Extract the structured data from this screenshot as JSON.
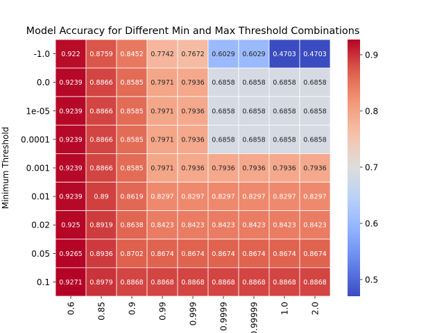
{
  "chart_data": {
    "type": "heatmap",
    "title": "Model Accuracy for Different Min and Max Threshold Combinations",
    "ylabel": "Minimum Threshold",
    "xlabel": "",
    "x_categories": [
      "0.6",
      "0.85",
      "0.9",
      "0.99",
      "0.999",
      "0.9999",
      "0.99999",
      "1.0",
      "2.0"
    ],
    "y_categories": [
      "-1.0",
      "0.0",
      "1e-05",
      "0.0001",
      "0.001",
      "0.01",
      "0.02",
      "0.05",
      "0.1"
    ],
    "values": [
      [
        0.922,
        0.8759,
        0.8452,
        0.7742,
        0.7672,
        0.6029,
        0.6029,
        0.4703,
        0.4703
      ],
      [
        0.9239,
        0.8866,
        0.8585,
        0.7971,
        0.7936,
        0.6858,
        0.6858,
        0.6858,
        0.6858
      ],
      [
        0.9239,
        0.8866,
        0.8585,
        0.7971,
        0.7936,
        0.6858,
        0.6858,
        0.6858,
        0.6858
      ],
      [
        0.9239,
        0.8866,
        0.8585,
        0.7971,
        0.7936,
        0.6858,
        0.6858,
        0.6858,
        0.6858
      ],
      [
        0.9239,
        0.8866,
        0.8585,
        0.7971,
        0.7936,
        0.7936,
        0.7936,
        0.7936,
        0.7936
      ],
      [
        0.9239,
        0.89,
        0.8619,
        0.8297,
        0.8297,
        0.8297,
        0.8297,
        0.8297,
        0.8297
      ],
      [
        0.925,
        0.8919,
        0.8638,
        0.8423,
        0.8423,
        0.8423,
        0.8423,
        0.8423,
        0.8423
      ],
      [
        0.9265,
        0.8936,
        0.8702,
        0.8674,
        0.8674,
        0.8674,
        0.8674,
        0.8674,
        0.8674
      ],
      [
        0.9271,
        0.8979,
        0.8868,
        0.8868,
        0.8868,
        0.8868,
        0.8868,
        0.8868,
        0.8868
      ]
    ],
    "value_labels": [
      [
        "0.922",
        "0.8759",
        "0.8452",
        "0.7742",
        "0.7672",
        "0.6029",
        "0.6029",
        "0.4703",
        "0.4703"
      ],
      [
        "0.9239",
        "0.8866",
        "0.8585",
        "0.7971",
        "0.7936",
        "0.6858",
        "0.6858",
        "0.6858",
        "0.6858"
      ],
      [
        "0.9239",
        "0.8866",
        "0.8585",
        "0.7971",
        "0.7936",
        "0.6858",
        "0.6858",
        "0.6858",
        "0.6858"
      ],
      [
        "0.9239",
        "0.8866",
        "0.8585",
        "0.7971",
        "0.7936",
        "0.6858",
        "0.6858",
        "0.6858",
        "0.6858"
      ],
      [
        "0.9239",
        "0.8866",
        "0.8585",
        "0.7971",
        "0.7936",
        "0.7936",
        "0.7936",
        "0.7936",
        "0.7936"
      ],
      [
        "0.9239",
        "0.89",
        "0.8619",
        "0.8297",
        "0.8297",
        "0.8297",
        "0.8297",
        "0.8297",
        "0.8297"
      ],
      [
        "0.925",
        "0.8919",
        "0.8638",
        "0.8423",
        "0.8423",
        "0.8423",
        "0.8423",
        "0.8423",
        "0.8423"
      ],
      [
        "0.9265",
        "0.8936",
        "0.8702",
        "0.8674",
        "0.8674",
        "0.8674",
        "0.8674",
        "0.8674",
        "0.8674"
      ],
      [
        "0.9271",
        "0.8979",
        "0.8868",
        "0.8868",
        "0.8868",
        "0.8868",
        "0.8868",
        "0.8868",
        "0.8868"
      ]
    ],
    "colorbar": {
      "colormap": "coolwarm",
      "vmin": 0.4703,
      "vmax": 0.9271,
      "ticks": [
        0.5,
        0.6,
        0.7,
        0.8,
        0.9
      ],
      "tick_labels": [
        "0.5",
        "0.6",
        "0.7",
        "0.8",
        "0.9"
      ]
    },
    "cell_border_color": "#ffffff"
  }
}
